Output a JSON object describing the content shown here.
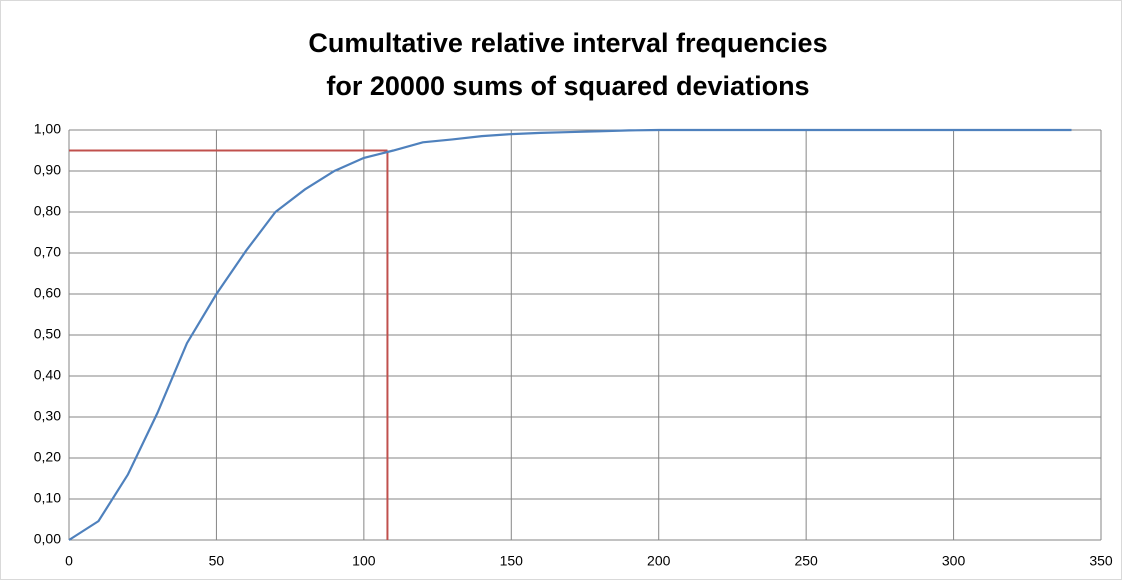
{
  "chart_data": {
    "type": "line",
    "title": [
      "Cumultative relative interval frequencies",
      "for 20000 sums of squared deviations"
    ],
    "x": [
      0,
      10,
      20,
      30,
      40,
      50,
      60,
      70,
      80,
      90,
      100,
      110,
      120,
      130,
      140,
      150,
      160,
      170,
      180,
      190,
      200,
      210,
      220,
      230,
      240,
      250,
      260,
      270,
      280,
      290,
      300,
      310,
      320,
      330,
      340
    ],
    "series": [
      {
        "color": "#4f81bd",
        "values": [
          0,
          0.046,
          0.16,
          0.31,
          0.48,
          0.6,
          0.705,
          0.8,
          0.855,
          0.9,
          0.932,
          0.95,
          0.97,
          0.977,
          0.985,
          0.99,
          0.993,
          0.995,
          0.997,
          0.999,
          1,
          1,
          1,
          1,
          1,
          1,
          1,
          1,
          1,
          1,
          1,
          1,
          1,
          1,
          1
        ]
      }
    ],
    "reference": {
      "x": 108,
      "y": 0.95,
      "color": "#c0504d"
    },
    "xlim": [
      0,
      350
    ],
    "xticks": [
      0,
      50,
      100,
      150,
      200,
      250,
      300,
      350
    ],
    "ylim": [
      0,
      1
    ],
    "yticks": [
      {
        "value": 0,
        "label": "0,00"
      },
      {
        "value": 0.1,
        "label": "0,10"
      },
      {
        "value": 0.2,
        "label": "0,20"
      },
      {
        "value": 0.3,
        "label": "0,30"
      },
      {
        "value": 0.4,
        "label": "0,40"
      },
      {
        "value": 0.5,
        "label": "0,50"
      },
      {
        "value": 0.6,
        "label": "0,60"
      },
      {
        "value": 0.7,
        "label": "0,70"
      },
      {
        "value": 0.8,
        "label": "0,80"
      },
      {
        "value": 0.9,
        "label": "0,90"
      },
      {
        "value": 1,
        "label": "1,00"
      }
    ],
    "grid": true
  }
}
